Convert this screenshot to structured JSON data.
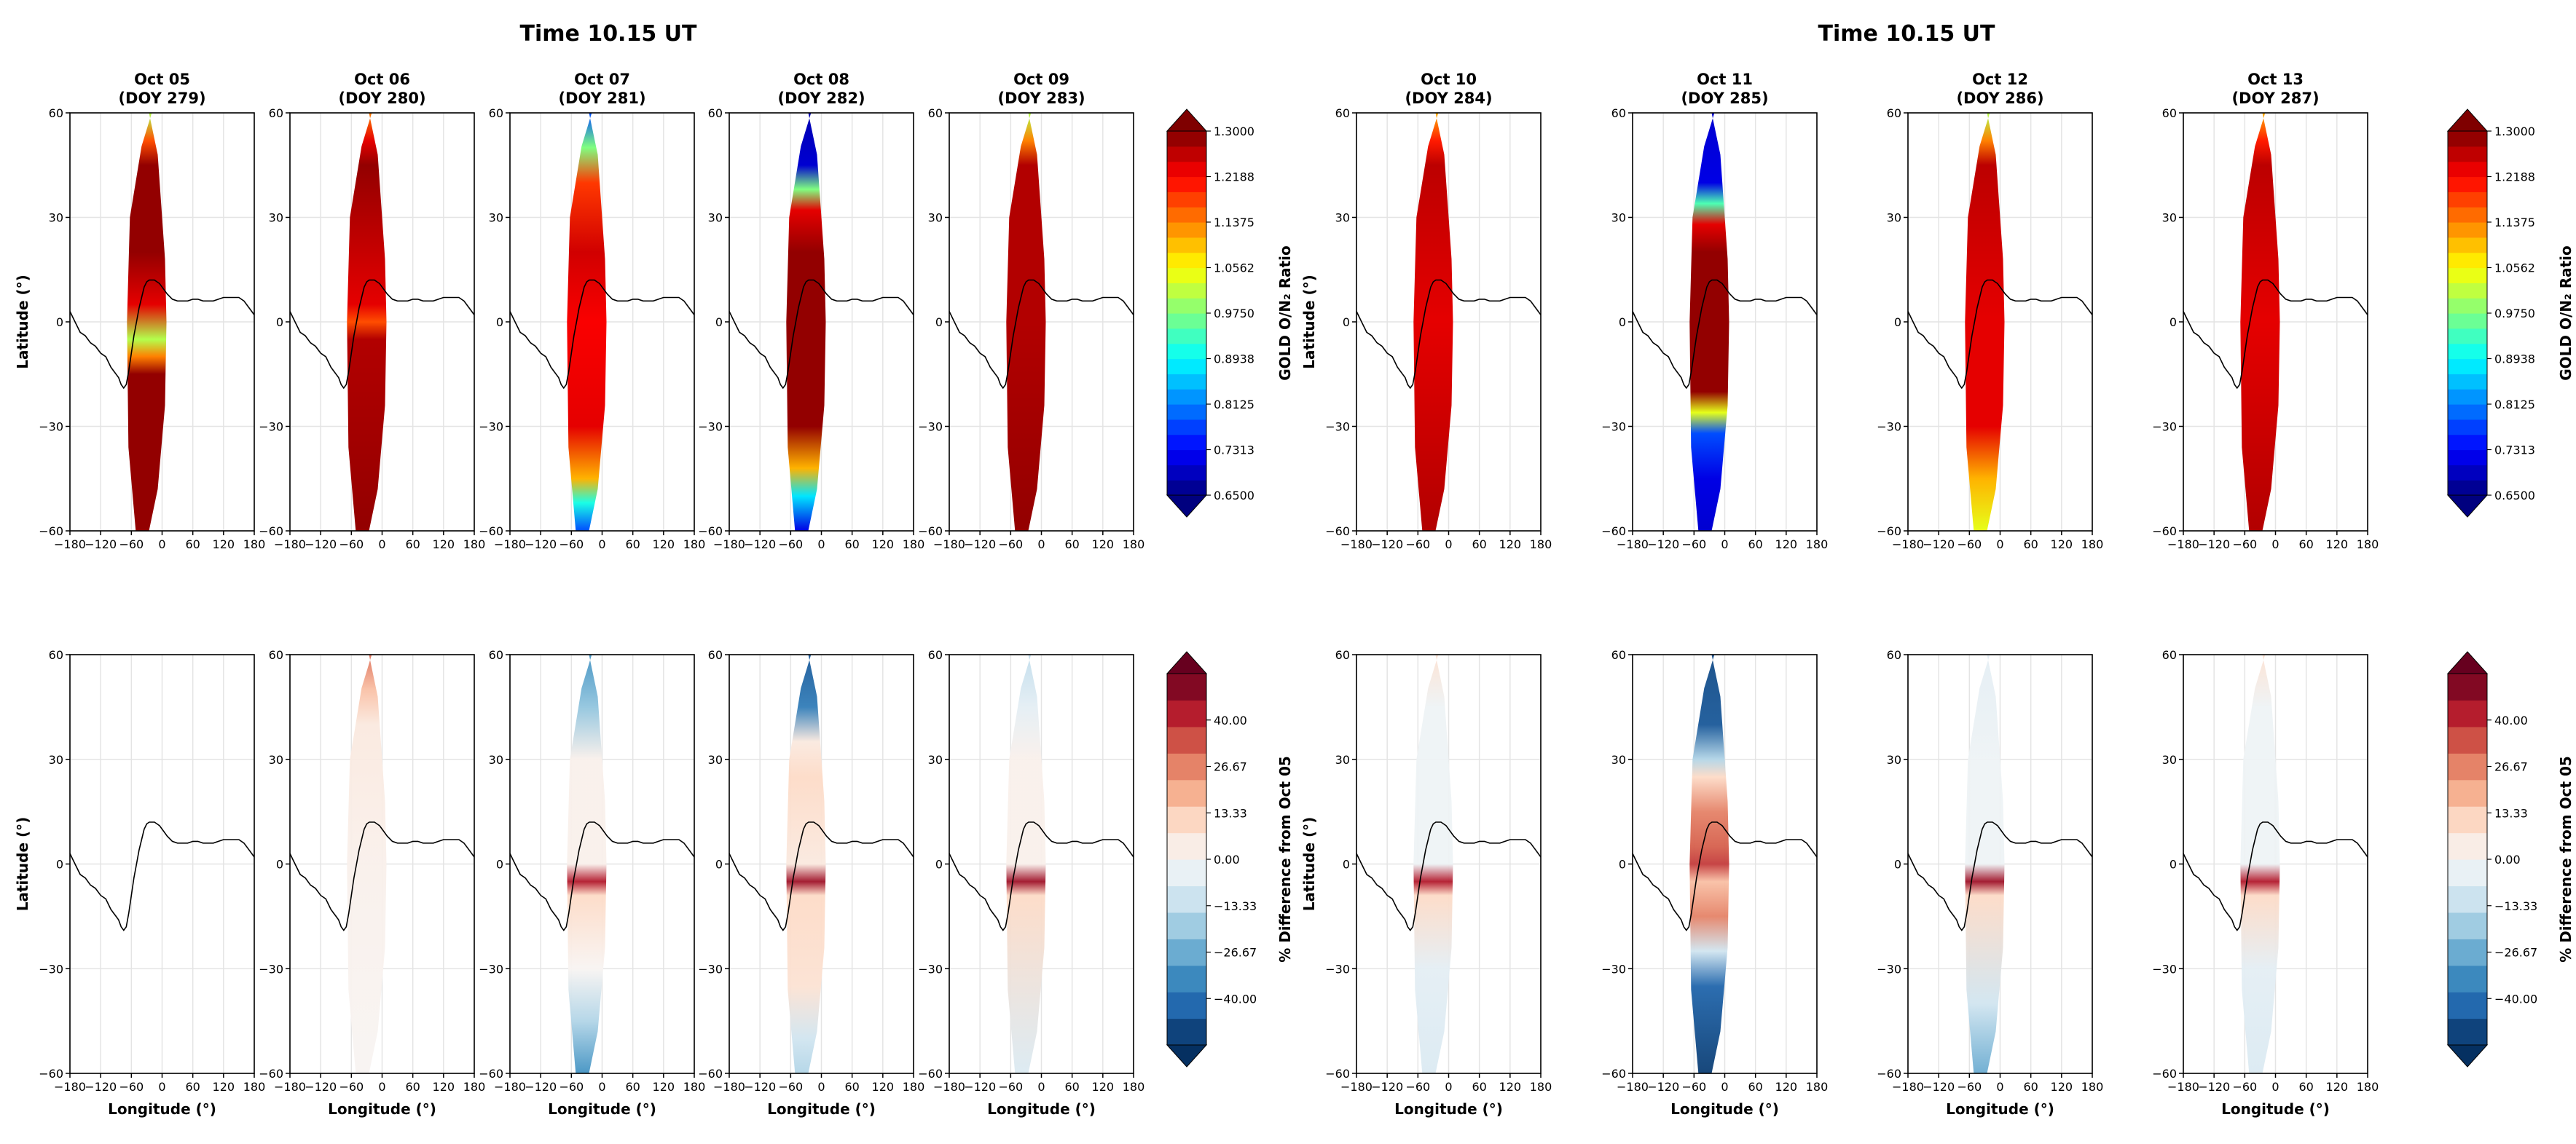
{
  "figure": {
    "left_title": "Time 10.15 UT",
    "right_title": "Time 10.15 UT",
    "xlabel": "Longitude (°)",
    "ylabel": "Latitude (°)",
    "top_colorbar_label": "GOLD O/N₂ Ratio",
    "bottom_colorbar_label": "% Difference from Oct 05"
  },
  "panels": [
    {
      "title": "Oct 05",
      "subtitle": "(DOY 279)",
      "top_pattern": "tropics_dip",
      "bottom_pattern": "empty"
    },
    {
      "title": "Oct 06",
      "subtitle": "(DOY 280)",
      "top_pattern": "all_high",
      "bottom_pattern": "faint_north"
    },
    {
      "title": "Oct 07",
      "subtitle": "(DOY 281)",
      "top_pattern": "ends_blue",
      "bottom_pattern": "ends_blue_band"
    },
    {
      "title": "Oct 08",
      "subtitle": "(DOY 282)",
      "top_pattern": "strong_ends",
      "bottom_pattern": "strong_ends_band"
    },
    {
      "title": "Oct 09",
      "subtitle": "(DOY 283)",
      "top_pattern": "north_edge",
      "bottom_pattern": "north_band"
    },
    {
      "title": "Oct 10",
      "subtitle": "(DOY 284)",
      "top_pattern": "mostly_high",
      "bottom_pattern": "faint_band"
    },
    {
      "title": "Oct 11",
      "subtitle": "(DOY 285)",
      "top_pattern": "storm",
      "bottom_pattern": "storm"
    },
    {
      "title": "Oct 12",
      "subtitle": "(DOY 286)",
      "top_pattern": "south_green",
      "bottom_pattern": "south_band"
    },
    {
      "title": "Oct 13",
      "subtitle": "(DOY 287)",
      "top_pattern": "mostly_high",
      "bottom_pattern": "faint_band"
    }
  ],
  "chart_data": [
    {
      "type": "heatmap",
      "title": "Time 10.15 UT",
      "rows": [
        "GOLD O/N₂ Ratio",
        "% Difference from Oct 05"
      ],
      "xlabel": "Longitude (°)",
      "ylabel": "Latitude (°)",
      "xlim": [
        -180,
        180
      ],
      "ylim": [
        -60,
        60
      ],
      "x_ticks": [
        -180,
        -120,
        -60,
        0,
        60,
        120,
        180
      ],
      "y_ticks": [
        -60,
        -30,
        0,
        30,
        60
      ],
      "swath_lon_range": [
        -60,
        0
      ],
      "panels": [
        "Oct 05 (DOY 279)",
        "Oct 06 (DOY 280)",
        "Oct 07 (DOY 281)",
        "Oct 08 (DOY 282)",
        "Oct 09 (DOY 283)"
      ],
      "colorbars": [
        {
          "label": "GOLD O/N₂ Ratio",
          "colormap": "jet",
          "range": [
            0.65,
            1.3
          ],
          "ticks": [
            "0.6500",
            "0.7313",
            "0.8125",
            "0.8938",
            "0.9750",
            "1.0562",
            "1.1375",
            "1.2188",
            "1.3000"
          ]
        },
        {
          "label": "% Difference from Oct 05",
          "colormap": "RdBu_r",
          "range": [
            -50,
            50
          ],
          "ticks": [
            "−40.00",
            "−26.67",
            "−13.33",
            "0.00",
            "13.33",
            "26.67",
            "40.00"
          ]
        }
      ]
    },
    {
      "type": "heatmap",
      "title": "Time 10.15 UT",
      "rows": [
        "GOLD O/N₂ Ratio",
        "% Difference from Oct 05"
      ],
      "xlabel": "Longitude (°)",
      "ylabel": "Latitude (°)",
      "xlim": [
        -180,
        180
      ],
      "ylim": [
        -60,
        60
      ],
      "x_ticks": [
        -180,
        -120,
        -60,
        0,
        60,
        120,
        180
      ],
      "y_ticks": [
        -60,
        -30,
        0,
        30,
        60
      ],
      "swath_lon_range": [
        -60,
        0
      ],
      "panels": [
        "Oct 10 (DOY 284)",
        "Oct 11 (DOY 285)",
        "Oct 12 (DOY 286)",
        "Oct 13 (DOY 287)"
      ],
      "colorbars": [
        {
          "label": "GOLD O/N₂ Ratio",
          "colormap": "jet",
          "range": [
            0.65,
            1.3
          ],
          "ticks": [
            "0.6500",
            "0.7313",
            "0.8125",
            "0.8938",
            "0.9750",
            "1.0562",
            "1.1375",
            "1.2188",
            "1.3000"
          ]
        },
        {
          "label": "% Difference from Oct 05",
          "colormap": "RdBu_r",
          "range": [
            -50,
            50
          ],
          "ticks": [
            "−40.00",
            "−26.67",
            "−13.33",
            "0.00",
            "13.33",
            "26.67",
            "40.00"
          ]
        }
      ]
    }
  ],
  "axes": {
    "x_tick_labels": [
      "−180",
      "−120",
      "−60",
      "0",
      "60",
      "120",
      "180"
    ],
    "y_tick_labels": [
      "−60",
      "−30",
      "0",
      "30",
      "60"
    ],
    "x_ticks": [
      -180,
      -120,
      -60,
      0,
      60,
      120,
      180
    ],
    "y_ticks": [
      -60,
      -30,
      0,
      30,
      60
    ]
  },
  "magnetic_equator": [
    [
      -180,
      3
    ],
    [
      -170,
      0
    ],
    [
      -160,
      -3
    ],
    [
      -150,
      -4
    ],
    [
      -140,
      -6
    ],
    [
      -130,
      -7
    ],
    [
      -120,
      -9
    ],
    [
      -110,
      -10
    ],
    [
      -100,
      -13
    ],
    [
      -95,
      -14
    ],
    [
      -90,
      -15
    ],
    [
      -85,
      -16
    ],
    [
      -80,
      -18
    ],
    [
      -75,
      -19
    ],
    [
      -70,
      -18
    ],
    [
      -65,
      -14
    ],
    [
      -60,
      -9
    ],
    [
      -55,
      -4
    ],
    [
      -50,
      0
    ],
    [
      -45,
      4
    ],
    [
      -40,
      7
    ],
    [
      -35,
      10
    ],
    [
      -30,
      11.5
    ],
    [
      -25,
      12
    ],
    [
      -20,
      12
    ],
    [
      -15,
      12
    ],
    [
      -10,
      11.5
    ],
    [
      -5,
      11
    ],
    [
      0,
      10
    ],
    [
      10,
      8
    ],
    [
      20,
      6.5
    ],
    [
      30,
      6
    ],
    [
      40,
      6
    ],
    [
      50,
      6
    ],
    [
      60,
      6.5
    ],
    [
      70,
      6.5
    ],
    [
      80,
      6
    ],
    [
      90,
      6
    ],
    [
      100,
      6
    ],
    [
      110,
      6.5
    ],
    [
      120,
      7
    ],
    [
      130,
      7
    ],
    [
      140,
      7
    ],
    [
      150,
      7
    ],
    [
      160,
      6
    ],
    [
      170,
      4
    ],
    [
      180,
      2
    ]
  ],
  "colormaps": {
    "jet": [
      "#00007f",
      "#0000ff",
      "#0080ff",
      "#00ffff",
      "#80ff80",
      "#ffff00",
      "#ff8000",
      "#ff0000",
      "#7f0000"
    ],
    "diverging": [
      "#053061",
      "#2166ac",
      "#4393c3",
      "#92c5de",
      "#d1e5f0",
      "#f7f7f7",
      "#fddbc7",
      "#f4a582",
      "#d6604d",
      "#b2182b",
      "#67001f"
    ]
  }
}
